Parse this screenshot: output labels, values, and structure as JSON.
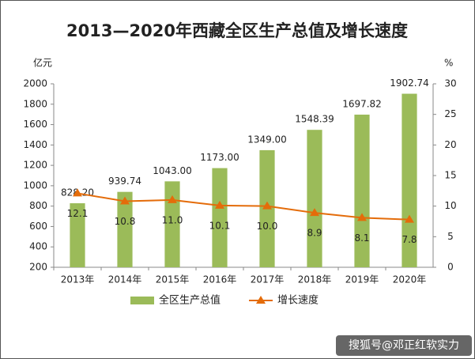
{
  "chart_data": {
    "type": "bar",
    "title": "2013—2020年西藏全区生产总值及增长速度",
    "y_unit": "亿元",
    "y2_unit": "%",
    "categories": [
      "2013年",
      "2014年",
      "2015年",
      "2016年",
      "2017年",
      "2018年",
      "2019年",
      "2020年"
    ],
    "series": [
      {
        "name": "全区生产总值",
        "type": "bar",
        "color": "#9bbb59",
        "values": [
          828.2,
          939.74,
          1043,
          1173,
          1349,
          1548.39,
          1697.82,
          1902.74
        ],
        "value_labels": [
          "828.20",
          "939.74",
          "1043.00",
          "1173.00",
          "1349.00",
          "1548.39",
          "1697.82",
          "1902.74"
        ]
      },
      {
        "name": "增长速度",
        "type": "line",
        "axis": "y2",
        "color": "#e46c0a",
        "values": [
          12.1,
          10.8,
          11,
          10.1,
          10,
          8.9,
          8.1,
          7.8
        ],
        "value_labels": [
          "12.1",
          "10.8",
          "11.0",
          "10.1",
          "10.0",
          "8.9",
          "8.1",
          "7.8"
        ]
      }
    ],
    "ylim": [
      200,
      2000
    ],
    "yticks": [
      200,
      400,
      600,
      800,
      1000,
      1200,
      1400,
      1600,
      1800,
      2000
    ],
    "y2lim": [
      0,
      30
    ],
    "y2ticks": [
      0,
      5,
      10,
      15,
      20,
      25,
      30
    ],
    "watermark": "搜狐号@邓正红软实力"
  }
}
